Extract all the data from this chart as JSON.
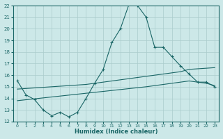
{
  "xlabel": "Humidex (Indice chaleur)",
  "bg_color": "#cce8e8",
  "grid_color": "#aacccc",
  "line_color": "#1a6666",
  "xlim": [
    -0.5,
    23.5
  ],
  "ylim": [
    12,
    22
  ],
  "xticks": [
    0,
    1,
    2,
    3,
    4,
    5,
    6,
    7,
    8,
    9,
    10,
    11,
    12,
    13,
    14,
    15,
    16,
    17,
    18,
    19,
    20,
    21,
    22,
    23
  ],
  "yticks": [
    12,
    13,
    14,
    15,
    16,
    17,
    18,
    19,
    20,
    21,
    22
  ],
  "line1_x": [
    0,
    1,
    2,
    3,
    4,
    5,
    6,
    7,
    8,
    9,
    10,
    11,
    12,
    13,
    14,
    15,
    16,
    17,
    18,
    19,
    20,
    21,
    22,
    23
  ],
  "line1_y": [
    15.5,
    14.3,
    13.9,
    13.0,
    12.5,
    12.8,
    12.4,
    12.8,
    14.0,
    15.3,
    16.5,
    18.8,
    20.0,
    22.1,
    22.0,
    21.0,
    18.4,
    18.4,
    17.6,
    16.8,
    16.1,
    15.4,
    15.4,
    15.0
  ],
  "line2_x": [
    0,
    1,
    2,
    3,
    4,
    5,
    6,
    7,
    8,
    9,
    10,
    11,
    12,
    13,
    14,
    15,
    16,
    17,
    18,
    19,
    20,
    21,
    22,
    23
  ],
  "line2_y": [
    14.8,
    14.85,
    14.9,
    14.95,
    15.0,
    15.05,
    15.1,
    15.15,
    15.2,
    15.3,
    15.4,
    15.5,
    15.6,
    15.7,
    15.8,
    15.9,
    16.0,
    16.1,
    16.2,
    16.3,
    16.5,
    16.55,
    16.6,
    16.65
  ],
  "line3_x": [
    0,
    1,
    2,
    3,
    4,
    5,
    6,
    7,
    8,
    9,
    10,
    11,
    12,
    13,
    14,
    15,
    16,
    17,
    18,
    19,
    20,
    21,
    22,
    23
  ],
  "line3_y": [
    13.8,
    13.88,
    13.96,
    14.04,
    14.12,
    14.2,
    14.28,
    14.36,
    14.44,
    14.52,
    14.6,
    14.68,
    14.76,
    14.84,
    14.92,
    15.0,
    15.1,
    15.2,
    15.3,
    15.4,
    15.5,
    15.4,
    15.3,
    15.1
  ]
}
